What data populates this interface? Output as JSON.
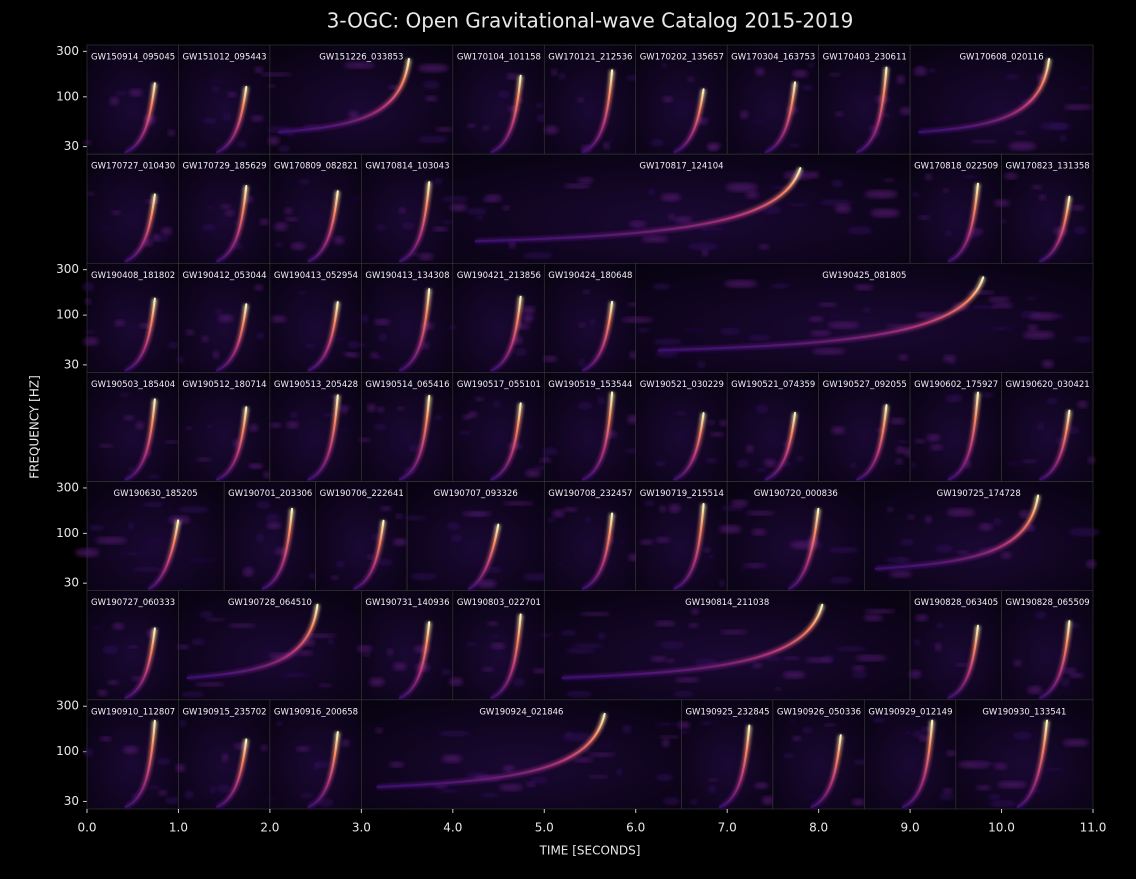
{
  "chart_data": {
    "type": "spectrogram-grid",
    "title": "3-OGC: Open Gravitational-wave Catalog 2015-2019",
    "xlabel": "TIME [SECONDS]",
    "ylabel": "FREQUENCY [HZ]",
    "xlim": [
      0,
      11
    ],
    "xticks": [
      {
        "value": 0,
        "label": "0.0"
      },
      {
        "value": 1,
        "label": "1.0"
      },
      {
        "value": 2,
        "label": "2.0"
      },
      {
        "value": 3,
        "label": "3.0"
      },
      {
        "value": 4,
        "label": "4.0"
      },
      {
        "value": 5,
        "label": "5.0"
      },
      {
        "value": 6,
        "label": "6.0"
      },
      {
        "value": 7,
        "label": "7.0"
      },
      {
        "value": 8,
        "label": "8.0"
      },
      {
        "value": 9,
        "label": "9.0"
      },
      {
        "value": 10,
        "label": "10.0"
      },
      {
        "value": 11,
        "label": "11.0"
      }
    ],
    "ylim": [
      25,
      350
    ],
    "yscale": "log",
    "yticks": [
      30,
      100,
      300
    ],
    "rows": [
      {
        "show_yticks": true,
        "panels": [
          {
            "name": "GW150914_095045",
            "start": 0,
            "end": 1
          },
          {
            "name": "GW151012_095443",
            "start": 1,
            "end": 2
          },
          {
            "name": "GW151226_033853",
            "start": 2,
            "end": 4
          },
          {
            "name": "GW170104_101158",
            "start": 4,
            "end": 5
          },
          {
            "name": "GW170121_212536",
            "start": 5,
            "end": 6
          },
          {
            "name": "GW170202_135657",
            "start": 6,
            "end": 7
          },
          {
            "name": "GW170304_163753",
            "start": 7,
            "end": 8
          },
          {
            "name": "GW170403_230611",
            "start": 8,
            "end": 9
          },
          {
            "name": "GW170608_020116",
            "start": 9,
            "end": 11
          }
        ]
      },
      {
        "show_yticks": false,
        "panels": [
          {
            "name": "GW170727_010430",
            "start": 0,
            "end": 1
          },
          {
            "name": "GW170729_185629",
            "start": 1,
            "end": 2
          },
          {
            "name": "GW170809_082821",
            "start": 2,
            "end": 3
          },
          {
            "name": "GW170814_103043",
            "start": 3,
            "end": 4
          },
          {
            "name": "GW170817_124104",
            "start": 4,
            "end": 9
          },
          {
            "name": "GW170818_022509",
            "start": 9,
            "end": 10
          },
          {
            "name": "GW170823_131358",
            "start": 10,
            "end": 11
          }
        ]
      },
      {
        "show_yticks": true,
        "panels": [
          {
            "name": "GW190408_181802",
            "start": 0,
            "end": 1
          },
          {
            "name": "GW190412_053044",
            "start": 1,
            "end": 2
          },
          {
            "name": "GW190413_052954",
            "start": 2,
            "end": 3
          },
          {
            "name": "GW190413_134308",
            "start": 3,
            "end": 4
          },
          {
            "name": "GW190421_213856",
            "start": 4,
            "end": 5
          },
          {
            "name": "GW190424_180648",
            "start": 5,
            "end": 6
          },
          {
            "name": "GW190425_081805",
            "start": 6,
            "end": 11
          }
        ]
      },
      {
        "show_yticks": false,
        "panels": [
          {
            "name": "GW190503_185404",
            "start": 0,
            "end": 1
          },
          {
            "name": "GW190512_180714",
            "start": 1,
            "end": 2
          },
          {
            "name": "GW190513_205428",
            "start": 2,
            "end": 3
          },
          {
            "name": "GW190514_065416",
            "start": 3,
            "end": 4
          },
          {
            "name": "GW190517_055101",
            "start": 4,
            "end": 5
          },
          {
            "name": "GW190519_153544",
            "start": 5,
            "end": 6
          },
          {
            "name": "GW190521_030229",
            "start": 6,
            "end": 7
          },
          {
            "name": "GW190521_074359",
            "start": 7,
            "end": 8
          },
          {
            "name": "GW190527_092055",
            "start": 8,
            "end": 9
          },
          {
            "name": "GW190602_175927",
            "start": 9,
            "end": 10
          },
          {
            "name": "GW190620_030421",
            "start": 10,
            "end": 11
          }
        ]
      },
      {
        "show_yticks": true,
        "panels": [
          {
            "name": "GW190630_185205",
            "start": 0,
            "end": 1.5
          },
          {
            "name": "GW190701_203306",
            "start": 1.5,
            "end": 2.5
          },
          {
            "name": "GW190706_222641",
            "start": 2.5,
            "end": 3.5
          },
          {
            "name": "GW190707_093326",
            "start": 3.5,
            "end": 5
          },
          {
            "name": "GW190708_232457",
            "start": 5,
            "end": 6
          },
          {
            "name": "GW190719_215514",
            "start": 6,
            "end": 7
          },
          {
            "name": "GW190720_000836",
            "start": 7,
            "end": 8.5
          },
          {
            "name": "GW190725_174728",
            "start": 8.5,
            "end": 11
          }
        ]
      },
      {
        "show_yticks": false,
        "panels": [
          {
            "name": "GW190727_060333",
            "start": 0,
            "end": 1
          },
          {
            "name": "GW190728_064510",
            "start": 1,
            "end": 3
          },
          {
            "name": "GW190731_140936",
            "start": 3,
            "end": 4
          },
          {
            "name": "GW190803_022701",
            "start": 4,
            "end": 5
          },
          {
            "name": "GW190814_211038",
            "start": 5,
            "end": 9
          },
          {
            "name": "GW190828_063405",
            "start": 9,
            "end": 10
          },
          {
            "name": "GW190828_065509",
            "start": 10,
            "end": 11
          }
        ]
      },
      {
        "show_yticks": true,
        "panels": [
          {
            "name": "GW190910_112807",
            "start": 0,
            "end": 1
          },
          {
            "name": "GW190915_235702",
            "start": 1,
            "end": 2
          },
          {
            "name": "GW190916_200658",
            "start": 2,
            "end": 3
          },
          {
            "name": "GW190924_021846",
            "start": 3,
            "end": 6.5
          },
          {
            "name": "GW190925_232845",
            "start": 6.5,
            "end": 7.5
          },
          {
            "name": "GW190926_050336",
            "start": 7.5,
            "end": 8.5
          },
          {
            "name": "GW190929_012149",
            "start": 8.5,
            "end": 9.5
          },
          {
            "name": "GW190930_133541",
            "start": 9.5,
            "end": 11
          }
        ]
      }
    ]
  }
}
